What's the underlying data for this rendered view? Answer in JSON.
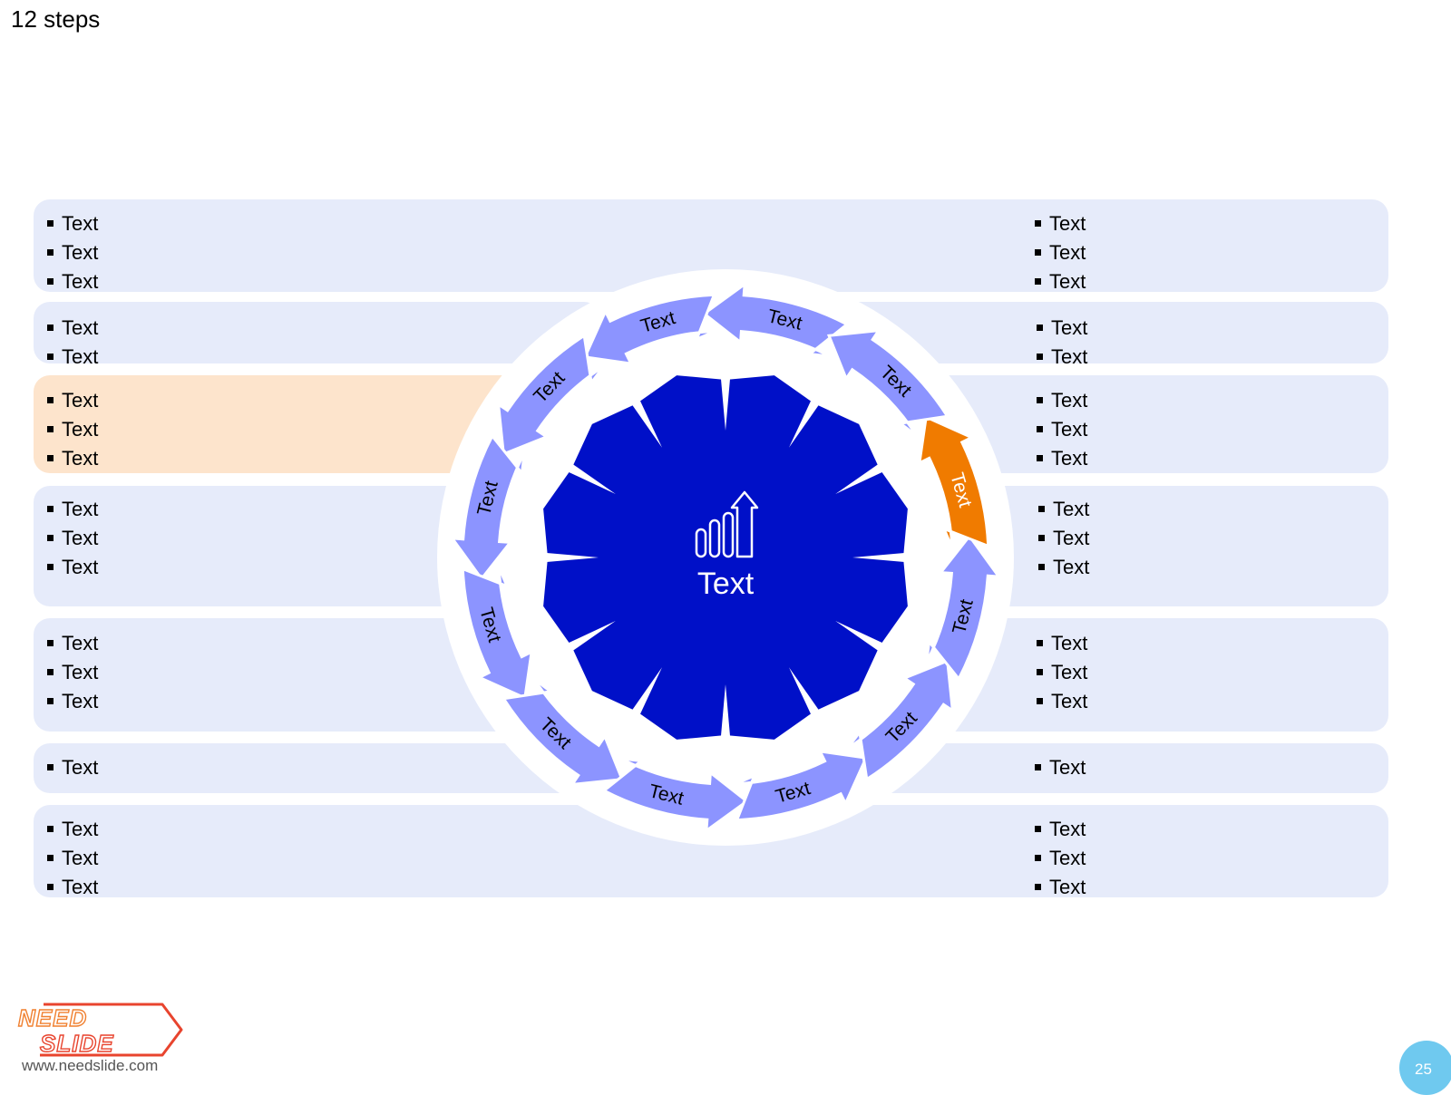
{
  "slide": {
    "title": "12 steps",
    "page_number": "25"
  },
  "center": {
    "label": "Text",
    "icon": "bar-chart-growth-icon",
    "color": "#0010c8"
  },
  "steps": [
    {
      "label": "Text",
      "highlighted": false
    },
    {
      "label": "Text",
      "highlighted": false
    },
    {
      "label": "Text",
      "highlighted": false
    },
    {
      "label": "Text",
      "highlighted": false
    },
    {
      "label": "Text",
      "highlighted": false
    },
    {
      "label": "Text",
      "highlighted": false
    },
    {
      "label": "Text",
      "highlighted": false
    },
    {
      "label": "Text",
      "highlighted": false
    },
    {
      "label": "Text",
      "highlighted": false
    },
    {
      "label": "Text",
      "highlighted": false
    },
    {
      "label": "Text",
      "highlighted": true
    },
    {
      "label": "Text",
      "highlighted": false
    }
  ],
  "colors": {
    "step": "#8c94ff",
    "highlight": "#f07b00",
    "panel": "#e6ebfa",
    "panel_highlight": "#fde4cc"
  },
  "left_lists": [
    [
      "Text",
      "Text",
      "Text"
    ],
    [
      "Text",
      "Text"
    ],
    [
      "Text",
      "Text",
      "Text"
    ],
    [
      "Text",
      "Text",
      "Text"
    ],
    [
      "Text",
      "Text",
      "Text"
    ],
    [
      "Text"
    ],
    [
      "Text",
      "Text",
      "Text"
    ]
  ],
  "right_lists": [
    [
      "Text",
      "Text",
      "Text"
    ],
    [
      "Text",
      "Text"
    ],
    [
      "Text",
      "Text",
      "Text"
    ],
    [
      "Text",
      "Text",
      "Text"
    ],
    [
      "Text",
      "Text",
      "Text"
    ],
    [
      "Text"
    ],
    [
      "Text",
      "Text",
      "Text"
    ]
  ],
  "logo": {
    "line1": "NEED",
    "line2": "SLIDE",
    "url": "www.needslide.com"
  }
}
